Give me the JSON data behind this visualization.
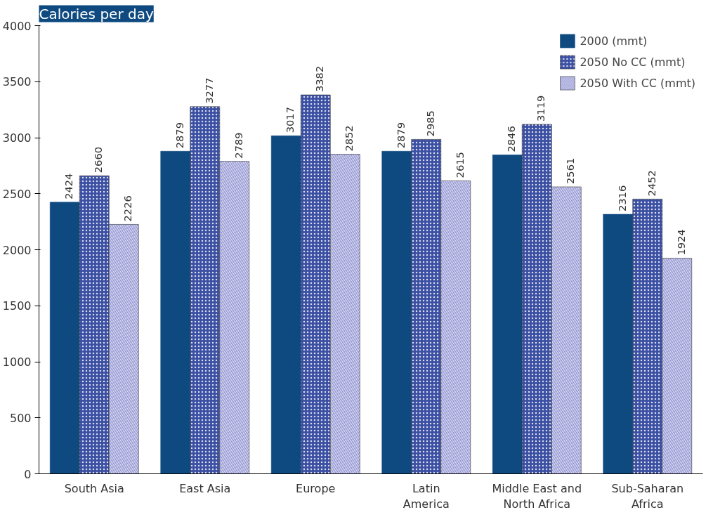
{
  "chart_data": {
    "type": "bar",
    "title": "Calories per day",
    "categories": [
      "South Asia",
      "East Asia",
      "Europe",
      "Latin\nAmerica",
      "Middle East and\nNorth Africa",
      "Sub-Saharan\nAfrica"
    ],
    "series": [
      {
        "name": "2000 (mmt)",
        "color": "#0e4a80",
        "values": [
          2424,
          2879,
          3017,
          2879,
          2846,
          2316
        ]
      },
      {
        "name": "2050 No CC (mmt)",
        "color": "#3b4fa3",
        "values": [
          2660,
          3277,
          3382,
          2985,
          3119,
          2452
        ]
      },
      {
        "name": "2050 With CC (mmt)",
        "color": "#9496d4",
        "values": [
          2226,
          2789,
          2852,
          2615,
          2561,
          1924
        ]
      }
    ],
    "ylim": [
      0,
      4000
    ],
    "yticks": [
      0,
      500,
      1000,
      1500,
      2000,
      2500,
      3000,
      3500,
      4000
    ],
    "grid": false,
    "legend": "top right",
    "data_labels": true
  }
}
